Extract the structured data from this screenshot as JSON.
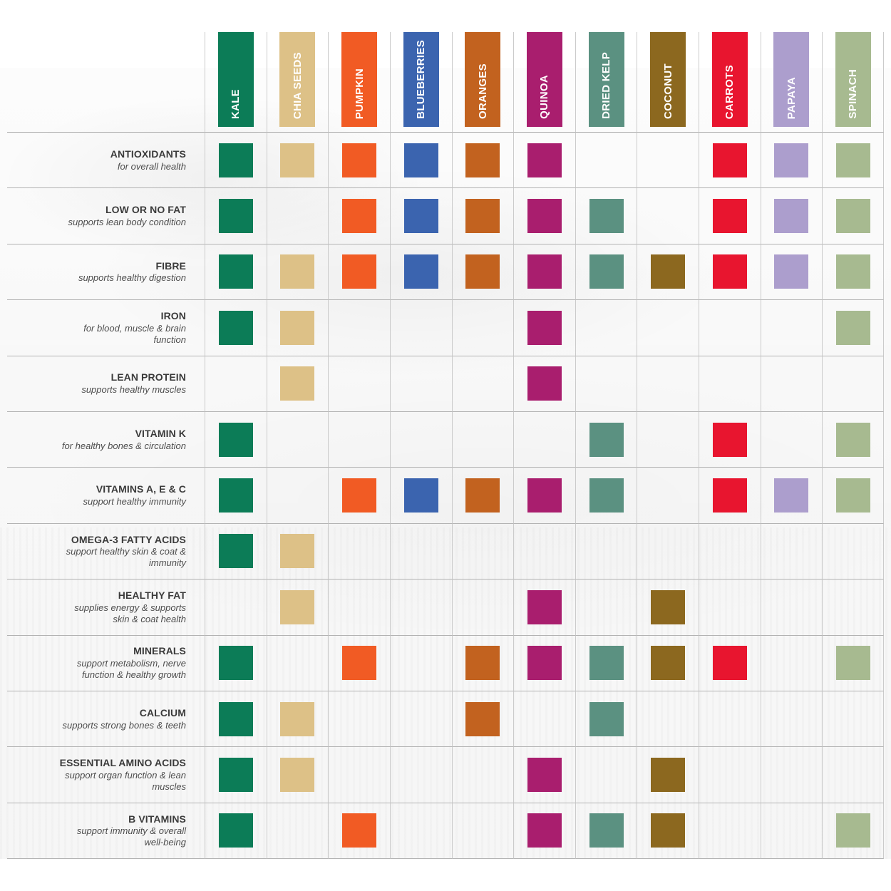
{
  "chart_data": {
    "type": "table",
    "title": "",
    "columns": [
      "KALE",
      "CHIA SEEDS",
      "PUMPKIN",
      "BLUEBERRIES",
      "ORANGES",
      "QUINOA",
      "DRIED KELP",
      "COCONUT",
      "CARROTS",
      "PAPAYA",
      "SPINACH"
    ],
    "column_colors": [
      "#0c7c57",
      "#ddc187",
      "#f15b24",
      "#3b64af",
      "#c2621f",
      "#a91e6e",
      "#5b9181",
      "#8c681f",
      "#e8152f",
      "#ac9ecd",
      "#a7ba90"
    ],
    "rows": [
      {
        "label": "ANTIOXIDANTS",
        "sublabel": "for overall health",
        "values": [
          1,
          1,
          1,
          1,
          1,
          1,
          0,
          0,
          1,
          1,
          1
        ]
      },
      {
        "label": "LOW OR NO FAT",
        "sublabel": "supports lean body condition",
        "values": [
          1,
          0,
          1,
          1,
          1,
          1,
          1,
          0,
          1,
          1,
          1
        ]
      },
      {
        "label": "FIBRE",
        "sublabel": "supports healthy digestion",
        "values": [
          1,
          1,
          1,
          1,
          1,
          1,
          1,
          1,
          1,
          1,
          1
        ]
      },
      {
        "label": "IRON",
        "sublabel": "for blood, muscle & brain function",
        "values": [
          1,
          1,
          0,
          0,
          0,
          1,
          0,
          0,
          0,
          0,
          1
        ]
      },
      {
        "label": "LEAN PROTEIN",
        "sublabel": "supports healthy muscles",
        "values": [
          0,
          1,
          0,
          0,
          0,
          1,
          0,
          0,
          0,
          0,
          0
        ]
      },
      {
        "label": "VITAMIN K",
        "sublabel": "for healthy bones & circulation",
        "values": [
          1,
          0,
          0,
          0,
          0,
          0,
          1,
          0,
          1,
          0,
          1
        ]
      },
      {
        "label": "VITAMINS A, E & C",
        "sublabel": "support healthy immunity",
        "values": [
          1,
          0,
          1,
          1,
          1,
          1,
          1,
          0,
          1,
          1,
          1
        ]
      },
      {
        "label": "OMEGA-3 FATTY ACIDS",
        "sublabel": "support healthy skin & coat & immunity",
        "values": [
          1,
          1,
          0,
          0,
          0,
          0,
          0,
          0,
          0,
          0,
          0
        ]
      },
      {
        "label": "HEALTHY FAT",
        "sublabel": "supplies energy & supports skin & coat health",
        "values": [
          0,
          1,
          0,
          0,
          0,
          1,
          0,
          1,
          0,
          0,
          0
        ]
      },
      {
        "label": "MINERALS",
        "sublabel": "support metabolism, nerve function & healthy growth",
        "values": [
          1,
          0,
          1,
          0,
          1,
          1,
          1,
          1,
          1,
          0,
          1
        ]
      },
      {
        "label": "CALCIUM",
        "sublabel": "supports strong bones & teeth",
        "values": [
          1,
          1,
          0,
          0,
          1,
          0,
          1,
          0,
          0,
          0,
          0
        ]
      },
      {
        "label": "ESSENTIAL AMINO ACIDS",
        "sublabel": "support organ function & lean muscles",
        "values": [
          1,
          1,
          0,
          0,
          0,
          1,
          0,
          1,
          0,
          0,
          0
        ]
      },
      {
        "label": "B VITAMINS",
        "sublabel": "support immunity & overall well-being",
        "values": [
          1,
          0,
          1,
          0,
          0,
          1,
          1,
          1,
          0,
          0,
          1
        ]
      }
    ],
    "legend_position": "none",
    "grid": true
  }
}
